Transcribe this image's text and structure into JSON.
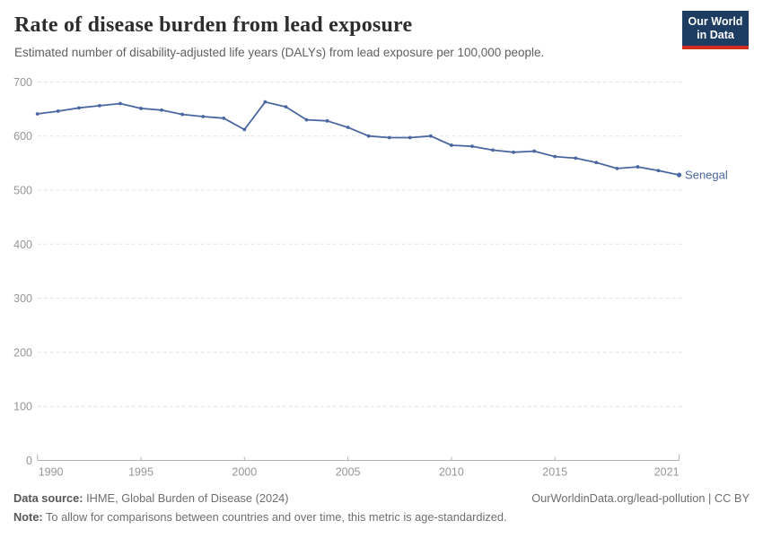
{
  "header": {
    "title": "Rate of disease burden from lead exposure",
    "subtitle": "Estimated number of disability-adjusted life years (DALYs) from lead exposure per 100,000 people.",
    "logo": {
      "line1": "Our World",
      "line2": "in Data",
      "bg_color": "#1d3d63",
      "bar_color": "#d42b21"
    }
  },
  "chart_data": {
    "type": "line",
    "title": "Rate of disease burden from lead exposure",
    "x": [
      1990,
      1991,
      1992,
      1993,
      1994,
      1995,
      1996,
      1997,
      1998,
      1999,
      2000,
      2001,
      2002,
      2003,
      2004,
      2005,
      2006,
      2007,
      2008,
      2009,
      2010,
      2011,
      2012,
      2013,
      2014,
      2015,
      2016,
      2017,
      2018,
      2019,
      2020,
      2021
    ],
    "series": [
      {
        "name": "Senegal",
        "color": "#4b67a1",
        "values": [
          641,
          646,
          652,
          656,
          660,
          651,
          648,
          640,
          636,
          633,
          612,
          663,
          654,
          630,
          628,
          616,
          600,
          597,
          597,
          600,
          583,
          581,
          574,
          570,
          572,
          562,
          559,
          551,
          540,
          543,
          536,
          528
        ]
      }
    ],
    "xlabel": "",
    "ylabel": "",
    "ylim": [
      0,
      700
    ],
    "yticks": [
      0,
      100,
      200,
      300,
      400,
      500,
      600,
      700
    ],
    "xticks": [
      1990,
      1995,
      2000,
      2005,
      2010,
      2015,
      2021
    ],
    "grid": "horizontal-dashed",
    "legend_position": "end-of-line",
    "end_label": "Senegal",
    "grid_color": "#e4e4e4",
    "axis_color": "#b3b3b3",
    "tick_label_color": "#969696"
  },
  "footer": {
    "source_label": "Data source:",
    "source_text": " IHME, Global Burden of Disease (2024)",
    "link_text": "OurWorldinData.org/lead-pollution | CC BY",
    "note_label": "Note:",
    "note_text": " To allow for comparisons between countries and over time, this metric is age-standardized."
  }
}
